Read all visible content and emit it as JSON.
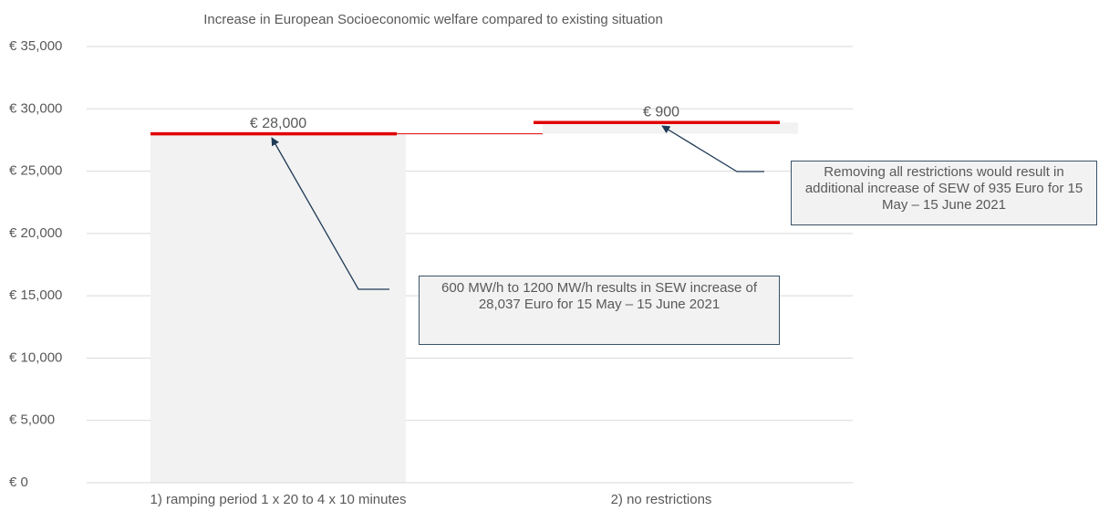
{
  "chart_data": {
    "type": "waterfall",
    "title": "Increase in European Socioeconomic welfare compared to existing situation",
    "categories": [
      "1) ramping period 1 x 20 to 4 x 10 minutes",
      "2) no restrictions"
    ],
    "values": [
      28000,
      900
    ],
    "value_labels": [
      "€ 28,000",
      "€ 900"
    ],
    "color": "#f2f2f2",
    "top_color": "#e00000",
    "ylim": [
      0,
      35000
    ],
    "yticks": [
      {
        "value": 0,
        "label": "€ 0"
      },
      {
        "value": 5000,
        "label": "€ 5,000"
      },
      {
        "value": 10000,
        "label": "€ 10,000"
      },
      {
        "value": 15000,
        "label": "€ 15,000"
      },
      {
        "value": 20000,
        "label": "€ 20,000"
      },
      {
        "value": 25000,
        "label": "€ 25,000"
      },
      {
        "value": 30000,
        "label": "€ 30,000"
      },
      {
        "value": 35000,
        "label": "€ 35,000"
      }
    ],
    "grid": true,
    "annotations": [
      "600 MW/h to 1200 MW/h results in SEW increase of 28,037 Euro for 15 May – 15 June 2021",
      "Removing all restrictions would result in additional increase of SEW of 935 Euro for 15 May – 15 June 2021"
    ]
  }
}
